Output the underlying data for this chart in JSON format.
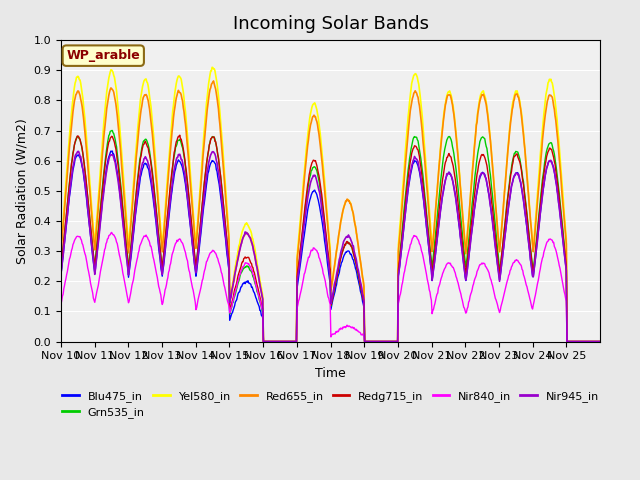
{
  "title": "Incoming Solar Bands",
  "xlabel": "Time",
  "ylabel": "Solar Radiation (W/m2)",
  "location_label": "WP_arable",
  "ylim": [
    0.0,
    1.0
  ],
  "series": [
    {
      "name": "Blu475_in",
      "color": "#0000ff",
      "lw": 1.0
    },
    {
      "name": "Grn535_in",
      "color": "#00cc00",
      "lw": 1.0
    },
    {
      "name": "Yel580_in",
      "color": "#ffff00",
      "lw": 1.2
    },
    {
      "name": "Red655_in",
      "color": "#ff8800",
      "lw": 1.2
    },
    {
      "name": "Redg715_in",
      "color": "#cc0000",
      "lw": 1.0
    },
    {
      "name": "Nir840_in",
      "color": "#ff00ff",
      "lw": 1.0
    },
    {
      "name": "Nir945_in",
      "color": "#9900cc",
      "lw": 1.2
    }
  ],
  "days": [
    "Nov 10",
    "Nov 11",
    "Nov 12",
    "Nov 13",
    "Nov 14",
    "Nov 15",
    "Nov 16",
    "Nov 17",
    "Nov 18",
    "Nov 19",
    "Nov 20",
    "Nov 21",
    "Nov 22",
    "Nov 23",
    "Nov 24",
    "Nov 25"
  ],
  "day_peaks": {
    "Yel580_in": [
      0.88,
      0.9,
      0.87,
      0.88,
      0.91,
      0.39,
      0.0,
      0.79,
      0.47,
      0.0,
      0.89,
      0.83,
      0.83,
      0.83,
      0.87,
      0.0
    ],
    "Red655_in": [
      0.83,
      0.84,
      0.82,
      0.83,
      0.86,
      0.36,
      0.0,
      0.75,
      0.47,
      0.0,
      0.83,
      0.82,
      0.82,
      0.82,
      0.82,
      0.0
    ],
    "Redg715_in": [
      0.68,
      0.68,
      0.66,
      0.68,
      0.68,
      0.28,
      0.0,
      0.6,
      0.33,
      0.0,
      0.65,
      0.62,
      0.62,
      0.62,
      0.64,
      0.0
    ],
    "Nir840_in": [
      0.35,
      0.36,
      0.35,
      0.34,
      0.3,
      0.26,
      0.0,
      0.31,
      0.05,
      0.0,
      0.35,
      0.26,
      0.26,
      0.27,
      0.34,
      0.0
    ],
    "Nir945_in": [
      0.63,
      0.62,
      0.61,
      0.62,
      0.63,
      0.36,
      0.0,
      0.55,
      0.35,
      0.0,
      0.61,
      0.56,
      0.56,
      0.56,
      0.6,
      0.0
    ],
    "Blu475_in": [
      0.62,
      0.63,
      0.59,
      0.6,
      0.6,
      0.2,
      0.0,
      0.5,
      0.3,
      0.0,
      0.6,
      0.56,
      0.56,
      0.56,
      0.6,
      0.0
    ],
    "Grn535_in": [
      0.68,
      0.7,
      0.67,
      0.67,
      0.68,
      0.25,
      0.0,
      0.58,
      0.33,
      0.0,
      0.68,
      0.68,
      0.68,
      0.63,
      0.66,
      0.0
    ]
  },
  "bg_color": "#e8e8e8",
  "plot_bg_color": "#f0f0f0",
  "title_fontsize": 13,
  "label_fontsize": 9,
  "tick_fontsize": 8,
  "legend_fontsize": 8
}
